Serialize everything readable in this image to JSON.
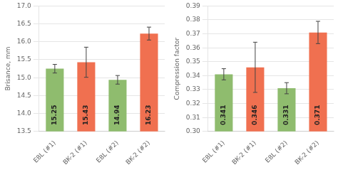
{
  "chart_data": [
    {
      "type": "bar",
      "categories": [
        "E8L (#1)",
        "BK-2 (#1)",
        "E8L (#2)",
        "BK-2 (#2)"
      ],
      "values": [
        15.25,
        15.43,
        14.94,
        16.23
      ],
      "errors": [
        0.12,
        0.42,
        0.12,
        0.18
      ],
      "colors": [
        "#8fbc6e",
        "#f07050",
        "#8fbc6e",
        "#f07050"
      ],
      "ylabel": "Brisance, mm",
      "ylim": [
        13.5,
        17.0
      ],
      "yticks": [
        13.5,
        {
          "value": 14.0,
          "label": "14.0"
        },
        14.5,
        {
          "value": 15.0,
          "label": "15.0"
        },
        15.5,
        {
          "value": 16.0,
          "label": "16.0"
        },
        16.5,
        {
          "value": 17.0,
          "label": "17.0"
        }
      ],
      "grid": true,
      "data_labels": true
    },
    {
      "type": "bar",
      "categories": [
        "E8L (#1)",
        "BK-2 (#1)",
        "E8L (#2)",
        "BK-2 (#2)"
      ],
      "values": [
        0.341,
        0.346,
        0.331,
        0.371
      ],
      "errors": [
        0.004,
        0.018,
        0.004,
        0.008
      ],
      "colors": [
        "#8fbc6e",
        "#f07050",
        "#8fbc6e",
        "#f07050"
      ],
      "ylabel": "Compression factor",
      "ylim": [
        0.3,
        0.39
      ],
      "yticks": [
        {
          "value": 0.3,
          "label": "0.30"
        },
        0.31,
        0.32,
        0.33,
        0.34,
        0.35,
        0.36,
        0.37,
        0.38,
        0.39
      ],
      "grid": true,
      "data_labels": true
    }
  ]
}
